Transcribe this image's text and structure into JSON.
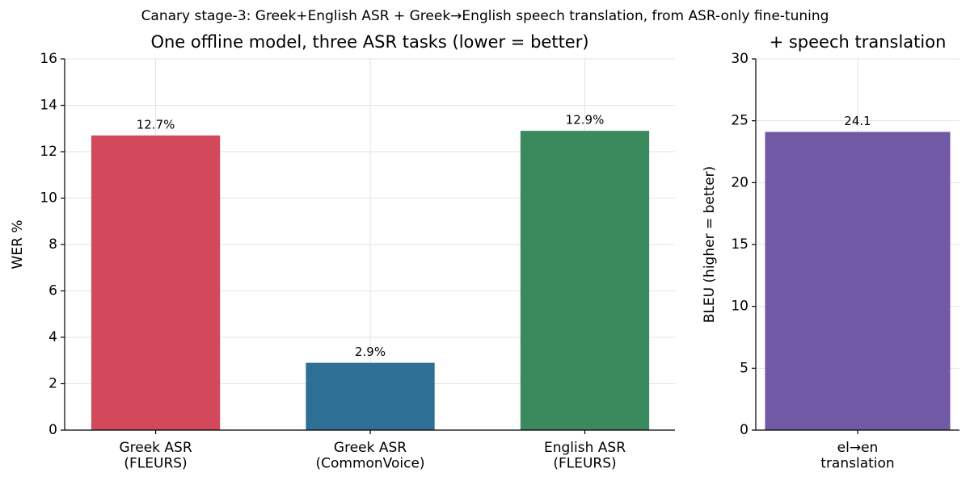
{
  "title": "Canary stage-3: Greek+English ASR + Greek→English speech translation, from ASR-only fine-tuning",
  "chart_data": [
    {
      "type": "bar",
      "title": "One offline model, three ASR tasks (lower = better)",
      "y_label": "WER %",
      "categories": [
        "Greek ASR\n(FLEURS)",
        "Greek ASR\n(CommonVoice)",
        "English ASR\n(FLEURS)"
      ],
      "values": [
        12.7,
        2.9,
        12.9
      ],
      "value_labels": [
        "12.7%",
        "2.9%",
        "12.9%"
      ],
      "colors": [
        "#d1495b",
        "#2e6f96",
        "#3a8a5e"
      ],
      "ylim": [
        0,
        16
      ],
      "yticks": [
        0,
        2,
        4,
        6,
        8,
        10,
        12,
        14,
        16
      ],
      "grid": true
    },
    {
      "type": "bar",
      "title": "+ speech translation",
      "y_label": "BLEU (higher = better)",
      "categories": [
        "el→en\ntranslation"
      ],
      "values": [
        24.1
      ],
      "colors": [
        "#7159a6"
      ],
      "ylim": [
        0,
        30
      ],
      "yticks": [
        0,
        5,
        10,
        15,
        20,
        25,
        30
      ],
      "grid": true
    }
  ]
}
